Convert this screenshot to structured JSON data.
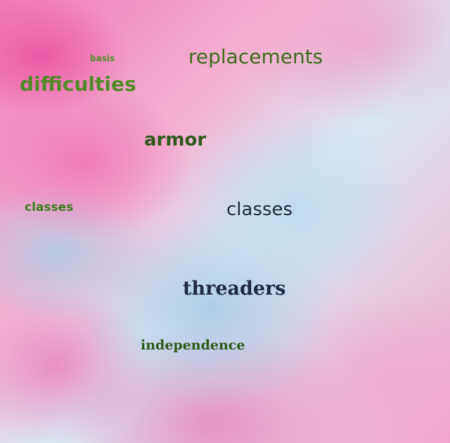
{
  "words": {
    "basis": "basis",
    "replacements": "replacements",
    "difficulties": "difficulties",
    "armor": "armor",
    "classes_1": "classes",
    "classes_2": "classes",
    "threaders": "threaders",
    "independence": "independence"
  },
  "colors": {
    "green_light": "#4e8f2a",
    "green_mid": "#3f6b1e",
    "green_dark": "#2f5a1a",
    "navy": "#1f2a44"
  }
}
